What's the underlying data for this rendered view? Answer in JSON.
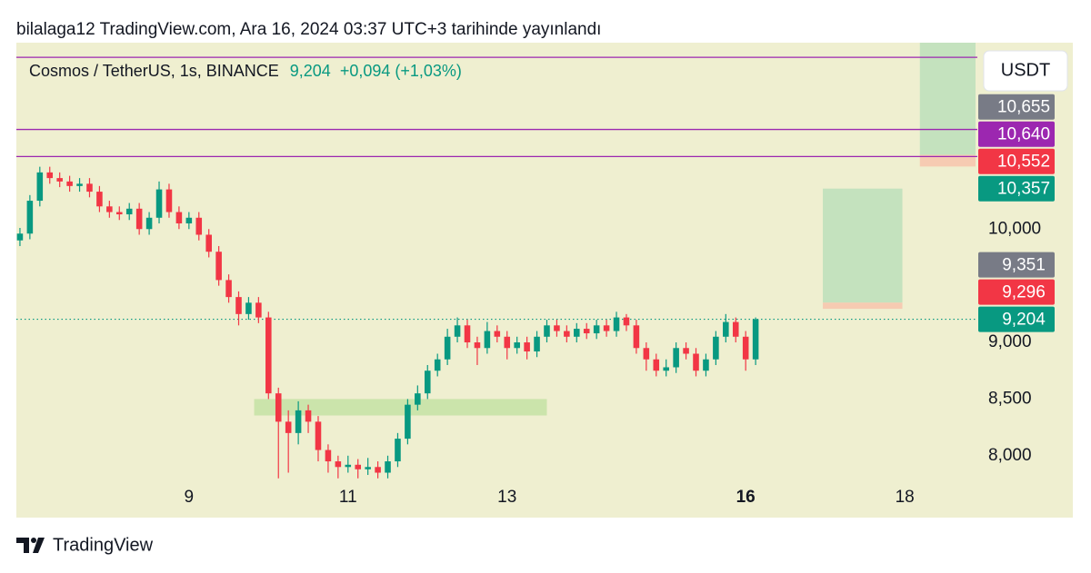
{
  "header": {
    "title": "bilalaga12 TradingView.com, Ara 16, 2024 03:37 UTC+3 tarihinde yayınlandı"
  },
  "chart_data": {
    "type": "candlestick",
    "symbol": "Cosmos / TetherUS, 1s, BINANCE",
    "last_price": "9,204",
    "change": "+0,094 (+1,03%)",
    "currency": "USDT",
    "up_color": "#089981",
    "down_color": "#f23645",
    "x": [
      6.875,
      7,
      7.125,
      7.25,
      7.375,
      7.5,
      7.625,
      7.75,
      7.875,
      8,
      8.125,
      8.25,
      8.375,
      8.5,
      8.625,
      8.75,
      8.875,
      9,
      9.125,
      9.25,
      9.375,
      9.5,
      9.625,
      9.75,
      9.875,
      10,
      10.125,
      10.25,
      10.375,
      10.5,
      10.625,
      10.75,
      10.875,
      11,
      11.125,
      11.25,
      11.375,
      11.5,
      11.625,
      11.75,
      11.875,
      12,
      12.125,
      12.25,
      12.375,
      12.5,
      12.625,
      12.75,
      12.875,
      13,
      13.125,
      13.25,
      13.375,
      13.5,
      13.625,
      13.75,
      13.875,
      14,
      14.125,
      14.25,
      14.375,
      14.5,
      14.625,
      14.75,
      14.875,
      15,
      15.125,
      15.25,
      15.375,
      15.5,
      15.625,
      15.75,
      15.875,
      16,
      16.125
    ],
    "open": [
      9.9,
      9.96,
      10.25,
      10.5,
      10.45,
      10.42,
      10.38,
      10.4,
      10.33,
      10.2,
      10.15,
      10.13,
      10.18,
      10.0,
      10.1,
      10.35,
      10.15,
      10.05,
      10.1,
      9.95,
      9.8,
      9.55,
      9.4,
      9.25,
      9.35,
      9.22,
      8.55,
      8.3,
      8.2,
      8.4,
      8.3,
      8.05,
      7.95,
      7.9,
      7.92,
      7.88,
      7.9,
      7.85,
      7.95,
      8.15,
      8.45,
      8.55,
      8.75,
      8.85,
      9.05,
      9.15,
      9.0,
      8.95,
      9.1,
      9.05,
      8.95,
      9.0,
      8.92,
      9.05,
      9.15,
      9.1,
      9.05,
      9.12,
      9.08,
      9.15,
      9.1,
      9.22,
      9.15,
      8.95,
      8.85,
      8.75,
      8.78,
      8.95,
      8.9,
      8.75,
      8.85,
      9.05,
      9.18,
      9.05,
      8.85
    ],
    "high": [
      10.01,
      10.3,
      10.55,
      10.55,
      10.5,
      10.47,
      10.45,
      10.45,
      10.38,
      10.25,
      10.2,
      10.23,
      10.23,
      10.15,
      10.42,
      10.4,
      10.2,
      10.15,
      10.15,
      10.0,
      9.85,
      9.6,
      9.45,
      9.4,
      9.4,
      9.27,
      8.6,
      8.4,
      8.48,
      8.45,
      8.35,
      8.1,
      8.0,
      8.0,
      7.97,
      7.98,
      7.95,
      8.0,
      8.2,
      8.5,
      8.62,
      8.8,
      8.9,
      9.12,
      9.22,
      9.2,
      9.05,
      9.18,
      9.15,
      9.1,
      9.05,
      9.05,
      9.1,
      9.2,
      9.2,
      9.15,
      9.17,
      9.17,
      9.2,
      9.2,
      9.27,
      9.25,
      9.2,
      9.0,
      8.9,
      8.85,
      9.0,
      9.0,
      8.95,
      8.9,
      9.1,
      9.25,
      9.22,
      9.1,
      9.22
    ],
    "low": [
      9.85,
      9.91,
      10.2,
      10.4,
      10.37,
      10.33,
      10.33,
      10.28,
      10.15,
      10.1,
      10.08,
      10.08,
      9.95,
      9.95,
      10.05,
      10.1,
      10.0,
      10.0,
      9.9,
      9.75,
      9.5,
      9.35,
      9.15,
      9.2,
      9.17,
      8.5,
      7.8,
      7.85,
      8.1,
      8.2,
      7.95,
      7.85,
      7.8,
      7.85,
      7.8,
      7.83,
      7.8,
      7.8,
      7.9,
      8.1,
      8.4,
      8.5,
      8.7,
      8.8,
      9.0,
      8.95,
      8.8,
      8.9,
      9.0,
      8.85,
      8.9,
      8.85,
      8.87,
      9.0,
      9.05,
      9.0,
      9.0,
      9.03,
      9.03,
      9.05,
      9.05,
      9.1,
      8.9,
      8.75,
      8.7,
      8.7,
      8.73,
      8.85,
      8.7,
      8.7,
      8.8,
      9.0,
      9.0,
      8.75,
      8.8
    ],
    "close": [
      9.96,
      10.25,
      10.5,
      10.45,
      10.42,
      10.38,
      10.4,
      10.33,
      10.2,
      10.15,
      10.13,
      10.18,
      10.0,
      10.1,
      10.35,
      10.15,
      10.05,
      10.1,
      9.95,
      9.8,
      9.55,
      9.4,
      9.25,
      9.35,
      9.22,
      8.55,
      8.3,
      8.2,
      8.4,
      8.3,
      8.05,
      7.95,
      7.9,
      7.92,
      7.88,
      7.9,
      7.85,
      7.95,
      8.15,
      8.45,
      8.55,
      8.75,
      8.85,
      9.05,
      9.15,
      9.0,
      8.95,
      9.1,
      9.05,
      8.95,
      9.0,
      8.92,
      9.05,
      9.15,
      9.1,
      9.05,
      9.12,
      9.08,
      9.15,
      9.1,
      9.22,
      9.15,
      8.95,
      8.85,
      8.75,
      8.78,
      8.95,
      8.9,
      8.75,
      8.85,
      9.05,
      9.18,
      9.05,
      8.85,
      9.204
    ],
    "xlim": [
      6.83,
      18.89
    ],
    "xticks": [
      9,
      11,
      13,
      16,
      18
    ],
    "highlight_xtick": 16,
    "ylim": [
      7.75,
      11.645
    ],
    "yticks": [
      {
        "value": 8,
        "label": "8,000"
      },
      {
        "value": 8.5,
        "label": "8,500"
      },
      {
        "value": 9,
        "label": "9,000"
      },
      {
        "value": 10,
        "label": "10,000"
      }
    ],
    "current_price": 9.204,
    "hlines": [
      {
        "value": 11.516,
        "color": "#9c27b0"
      },
      {
        "value": 10.879,
        "color": "#9c27b0"
      },
      {
        "value": 10.64,
        "color": "#9c27b0"
      }
    ],
    "zones": [
      {
        "x0": 9.82,
        "x1": 13.5,
        "y0": 8.355,
        "y1": 8.5,
        "color": "#c6e2a6"
      },
      {
        "x0": 16.97,
        "x1": 17.97,
        "y0": 9.351,
        "y1": 10.357,
        "color": "#bfe0bb"
      },
      {
        "x0": 16.97,
        "x1": 17.97,
        "y0": 9.296,
        "y1": 9.351,
        "color": "#f6c7ae"
      },
      {
        "x0": 18.19,
        "x1": 18.89,
        "y0": 10.655,
        "y1": 11.8,
        "color": "#bfe0bb"
      },
      {
        "x0": 18.19,
        "x1": 18.89,
        "y0": 10.552,
        "y1": 10.655,
        "color": "#f6c7ae"
      }
    ],
    "price_labels": [
      {
        "value": 9.204,
        "label": "9,204",
        "color": "#089981"
      },
      {
        "value": 9.296,
        "label": "9,296",
        "color": "#f23645"
      },
      {
        "value": 9.351,
        "label": "9,351",
        "color": "#787b86"
      },
      {
        "value": 10.357,
        "label": "10,357",
        "color": "#089981"
      },
      {
        "value": 10.552,
        "label": "10,552",
        "color": "#f23645"
      },
      {
        "value": 10.64,
        "label": "10,640",
        "color": "#9c27b0"
      },
      {
        "value": 10.655,
        "label": "10,655",
        "color": "#787b86"
      }
    ]
  },
  "footer": {
    "brand": "TradingView"
  }
}
